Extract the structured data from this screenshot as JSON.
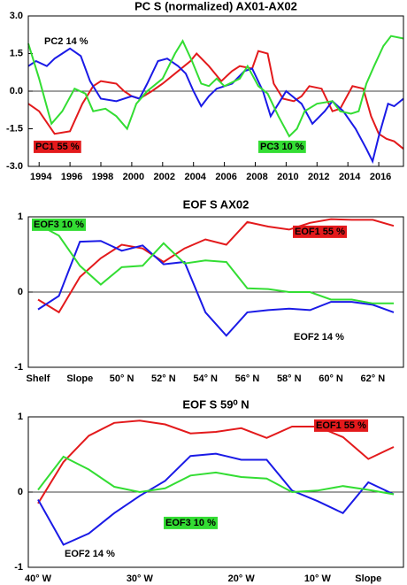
{
  "chart_data": [
    {
      "type": "line",
      "title": "PC S (normalized) AX01-AX02",
      "xlim": [
        1993.3,
        2017.6
      ],
      "xticks": [
        1994,
        1996,
        1998,
        2000,
        2002,
        2004,
        2006,
        2008,
        2010,
        2012,
        2014,
        2016
      ],
      "ylim": [
        -3,
        3
      ],
      "yticks": [
        {
          "value": -3,
          "label": "-3.0"
        },
        {
          "value": -1.5,
          "label": "-1.5"
        },
        {
          "value": 0,
          "label": "0.0"
        },
        {
          "value": 1.5,
          "label": "1.5"
        },
        {
          "value": 3,
          "label": "3.0"
        }
      ],
      "series": [
        {
          "name": "PC1 55 %",
          "color": "#e31a1c",
          "label_box": true,
          "x": [
            1993.3,
            1994,
            1995,
            1996,
            1996.8,
            1997.5,
            1998,
            1999,
            1999.5,
            2000,
            2000.5,
            2001.3,
            2002,
            2003,
            2003.8,
            2004.2,
            2005,
            2005.8,
            2006.5,
            2007,
            2007.8,
            2008.2,
            2008.8,
            2009.2,
            2009.8,
            2010.5,
            2011,
            2011.5,
            2012.3,
            2013,
            2013.5,
            2014.3,
            2015,
            2015.5,
            2016,
            2016.5,
            2017,
            2017.6
          ],
          "values": [
            -0.5,
            -0.8,
            -1.7,
            -1.6,
            -0.5,
            0.2,
            0.4,
            0.3,
            0.0,
            -0.2,
            -0.3,
            0.0,
            0.3,
            0.8,
            1.2,
            1.5,
            1.0,
            0.4,
            0.8,
            1.0,
            0.9,
            1.6,
            1.5,
            0.3,
            -0.3,
            -0.4,
            -0.2,
            0.2,
            0.1,
            -0.8,
            -0.7,
            0.2,
            0.1,
            -1.0,
            -1.7,
            -1.9,
            -2.0,
            -2.3
          ]
        },
        {
          "name": "PC2 14 %",
          "color": "#1a1ae6",
          "label_box": false,
          "x": [
            1993.3,
            1993.8,
            1994.5,
            1995,
            1995.5,
            1996,
            1996.7,
            1997.3,
            1998,
            1999,
            2000,
            2000.5,
            2001,
            2001.7,
            2002.3,
            2003,
            2003.5,
            2004,
            2004.5,
            2005,
            2005.5,
            2006.5,
            2007.3,
            2007.8,
            2008.5,
            2009,
            2009.5,
            2010,
            2011,
            2011.7,
            2012.5,
            2013,
            2013.7,
            2014.5,
            2015.2,
            2015.6,
            2016,
            2016.6,
            2017,
            2017.6
          ],
          "values": [
            1.0,
            1.2,
            1.0,
            1.3,
            1.5,
            1.7,
            1.4,
            0.4,
            -0.3,
            -0.4,
            -0.2,
            -0.3,
            0.3,
            1.2,
            1.3,
            1.0,
            0.7,
            0.0,
            -0.6,
            -0.2,
            0.1,
            0.3,
            0.8,
            0.9,
            0.0,
            -1.0,
            -0.5,
            0.0,
            -0.5,
            -1.3,
            -0.8,
            -0.4,
            -0.8,
            -1.5,
            -2.3,
            -2.8,
            -1.8,
            -0.5,
            -0.6,
            -0.3
          ]
        },
        {
          "name": "PC3 10 %",
          "color": "#33dd33",
          "label_box": true,
          "x": [
            1993.3,
            1994,
            1994.8,
            1995.5,
            1996.3,
            1997,
            1997.5,
            1998.3,
            1999,
            1999.7,
            2000.3,
            2001,
            2002,
            2002.8,
            2003.3,
            2003.9,
            2004.5,
            2005,
            2005.5,
            2006,
            2007,
            2007.5,
            2008.2,
            2008.8,
            2009.5,
            2010.2,
            2010.7,
            2011.2,
            2012,
            2013,
            2013.5,
            2014.2,
            2014.7,
            2015.2,
            2015.7,
            2016.3,
            2016.8,
            2017.6
          ],
          "values": [
            1.9,
            0.5,
            -1.3,
            -0.8,
            0.1,
            -0.1,
            -0.8,
            -0.7,
            -1.0,
            -1.5,
            -0.5,
            0.0,
            0.5,
            1.5,
            2.0,
            1.2,
            0.3,
            0.2,
            0.5,
            0.2,
            0.5,
            1.0,
            0.2,
            -0.1,
            -1.0,
            -1.8,
            -1.5,
            -0.8,
            -0.5,
            -0.4,
            -0.8,
            -0.9,
            -0.8,
            0.3,
            1.0,
            1.8,
            2.2,
            2.1
          ]
        }
      ]
    },
    {
      "type": "line",
      "title": "EOF S AX02",
      "categories": [
        "Shelf",
        null,
        "Slope",
        null,
        "50° N",
        null,
        "52° N",
        null,
        "54° N",
        null,
        "56° N",
        null,
        "58° N",
        null,
        "60° N",
        null,
        "62° N",
        null
      ],
      "ylim": [
        -1,
        1
      ],
      "yticks": [
        -1,
        0,
        1
      ],
      "series": [
        {
          "name": "EOF1 55 %",
          "color": "#e31a1c",
          "label_box": true,
          "values": [
            -0.1,
            -0.27,
            0.2,
            0.45,
            0.63,
            0.58,
            0.4,
            0.58,
            0.7,
            0.63,
            0.93,
            0.87,
            0.83,
            0.92,
            0.97,
            0.96,
            0.96,
            0.88
          ]
        },
        {
          "name": "EOF2 14 %",
          "color": "#1a1ae6",
          "label_box": false,
          "values": [
            -0.23,
            -0.05,
            0.67,
            0.68,
            0.55,
            0.62,
            0.37,
            0.4,
            -0.27,
            -0.58,
            -0.27,
            -0.24,
            -0.22,
            -0.24,
            -0.13,
            -0.13,
            -0.17,
            -0.27
          ]
        },
        {
          "name": "EOF3 10 %",
          "color": "#33dd33",
          "label_box": true,
          "values": [
            0.9,
            0.75,
            0.35,
            0.1,
            0.33,
            0.35,
            0.65,
            0.38,
            0.42,
            0.4,
            0.05,
            0.04,
            0.0,
            0.0,
            -0.1,
            -0.1,
            -0.15,
            -0.15
          ]
        }
      ]
    },
    {
      "type": "line",
      "title": "EOF S 59⁰ N",
      "categories": [
        "40° W",
        null,
        null,
        null,
        "30° W",
        null,
        null,
        null,
        "20° W",
        null,
        null,
        "10° W",
        null,
        "Slope",
        null
      ],
      "ylim": [
        -1,
        1
      ],
      "yticks": [
        -1,
        0,
        1
      ],
      "series": [
        {
          "name": "EOF1 55 %",
          "color": "#e31a1c",
          "label_box": true,
          "values": [
            -0.15,
            0.4,
            0.75,
            0.92,
            0.95,
            0.9,
            0.78,
            0.8,
            0.85,
            0.72,
            0.87,
            0.87,
            0.73,
            0.44,
            0.6
          ]
        },
        {
          "name": "EOF2 14 %",
          "color": "#1a1ae6",
          "label_box": false,
          "values": [
            -0.1,
            -0.7,
            -0.55,
            -0.28,
            -0.05,
            0.15,
            0.48,
            0.51,
            0.43,
            0.43,
            0.02,
            -0.12,
            -0.28,
            0.13,
            -0.03
          ]
        },
        {
          "name": "EOF3 10 %",
          "color": "#33dd33",
          "label_box": true,
          "values": [
            0.03,
            0.47,
            0.3,
            0.07,
            0.0,
            0.05,
            0.22,
            0.26,
            0.2,
            0.18,
            0.0,
            0.02,
            0.08,
            0.03,
            -0.03
          ]
        }
      ]
    }
  ]
}
